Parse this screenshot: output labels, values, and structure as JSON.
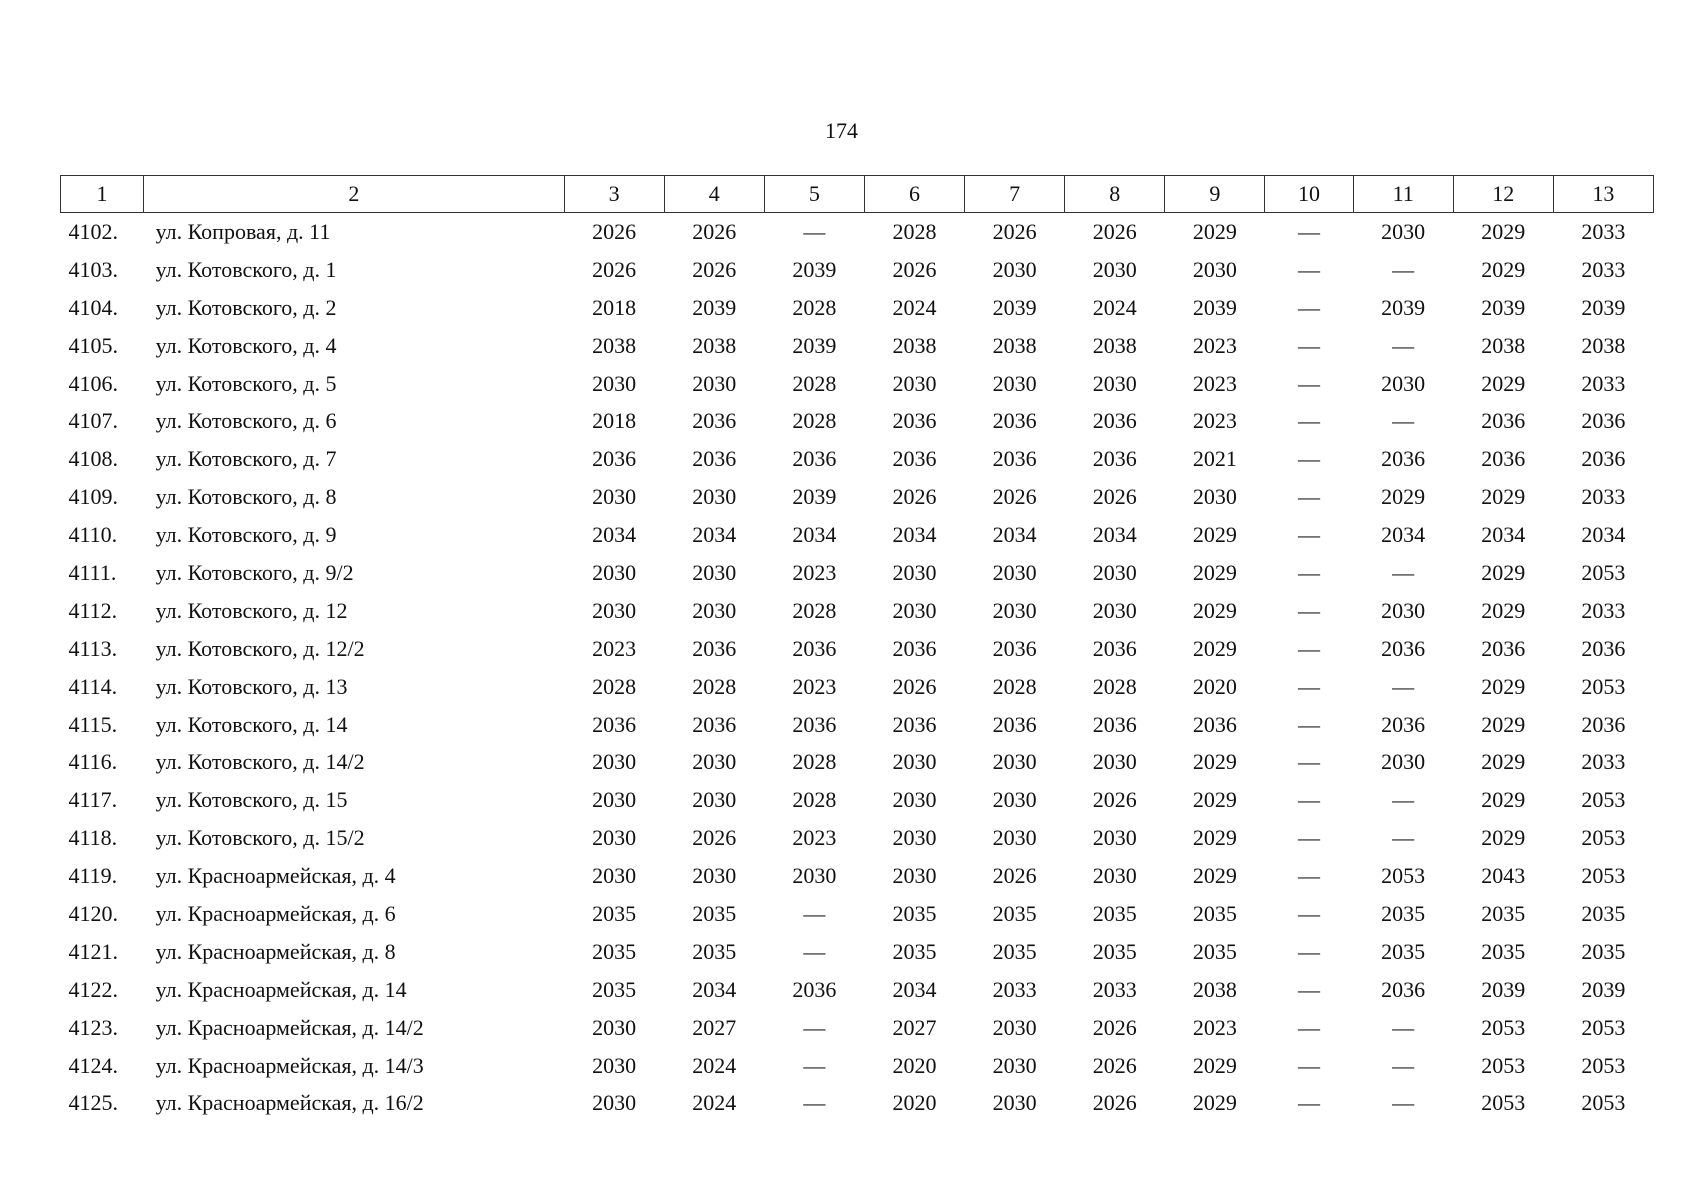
{
  "page_number": "174",
  "table": {
    "headers": [
      "1",
      "2",
      "3",
      "4",
      "5",
      "6",
      "7",
      "8",
      "9",
      "10",
      "11",
      "12",
      "13"
    ],
    "rows": [
      [
        "4102.",
        "ул. Копровая, д. 11",
        "2026",
        "2026",
        "—",
        "2028",
        "2026",
        "2026",
        "2029",
        "—",
        "2030",
        "2029",
        "2033"
      ],
      [
        "4103.",
        "ул. Котовского, д. 1",
        "2026",
        "2026",
        "2039",
        "2026",
        "2030",
        "2030",
        "2030",
        "—",
        "—",
        "2029",
        "2033"
      ],
      [
        "4104.",
        "ул. Котовского, д. 2",
        "2018",
        "2039",
        "2028",
        "2024",
        "2039",
        "2024",
        "2039",
        "—",
        "2039",
        "2039",
        "2039"
      ],
      [
        "4105.",
        "ул. Котовского, д. 4",
        "2038",
        "2038",
        "2039",
        "2038",
        "2038",
        "2038",
        "2023",
        "—",
        "—",
        "2038",
        "2038"
      ],
      [
        "4106.",
        "ул. Котовского, д. 5",
        "2030",
        "2030",
        "2028",
        "2030",
        "2030",
        "2030",
        "2023",
        "—",
        "2030",
        "2029",
        "2033"
      ],
      [
        "4107.",
        "ул. Котовского, д. 6",
        "2018",
        "2036",
        "2028",
        "2036",
        "2036",
        "2036",
        "2023",
        "—",
        "—",
        "2036",
        "2036"
      ],
      [
        "4108.",
        "ул. Котовского, д. 7",
        "2036",
        "2036",
        "2036",
        "2036",
        "2036",
        "2036",
        "2021",
        "—",
        "2036",
        "2036",
        "2036"
      ],
      [
        "4109.",
        "ул. Котовского, д. 8",
        "2030",
        "2030",
        "2039",
        "2026",
        "2026",
        "2026",
        "2030",
        "—",
        "2029",
        "2029",
        "2033"
      ],
      [
        "4110.",
        "ул. Котовского, д. 9",
        "2034",
        "2034",
        "2034",
        "2034",
        "2034",
        "2034",
        "2029",
        "—",
        "2034",
        "2034",
        "2034"
      ],
      [
        "4111.",
        "ул. Котовского, д. 9/2",
        "2030",
        "2030",
        "2023",
        "2030",
        "2030",
        "2030",
        "2029",
        "—",
        "—",
        "2029",
        "2053"
      ],
      [
        "4112.",
        "ул. Котовского, д. 12",
        "2030",
        "2030",
        "2028",
        "2030",
        "2030",
        "2030",
        "2029",
        "—",
        "2030",
        "2029",
        "2033"
      ],
      [
        "4113.",
        "ул. Котовского, д. 12/2",
        "2023",
        "2036",
        "2036",
        "2036",
        "2036",
        "2036",
        "2029",
        "—",
        "2036",
        "2036",
        "2036"
      ],
      [
        "4114.",
        "ул. Котовского, д. 13",
        "2028",
        "2028",
        "2023",
        "2026",
        "2028",
        "2028",
        "2020",
        "—",
        "—",
        "2029",
        "2053"
      ],
      [
        "4115.",
        "ул. Котовского, д. 14",
        "2036",
        "2036",
        "2036",
        "2036",
        "2036",
        "2036",
        "2036",
        "—",
        "2036",
        "2029",
        "2036"
      ],
      [
        "4116.",
        "ул. Котовского, д. 14/2",
        "2030",
        "2030",
        "2028",
        "2030",
        "2030",
        "2030",
        "2029",
        "—",
        "2030",
        "2029",
        "2033"
      ],
      [
        "4117.",
        "ул. Котовского, д. 15",
        "2030",
        "2030",
        "2028",
        "2030",
        "2030",
        "2026",
        "2029",
        "—",
        "—",
        "2029",
        "2053"
      ],
      [
        "4118.",
        "ул. Котовского, д. 15/2",
        "2030",
        "2026",
        "2023",
        "2030",
        "2030",
        "2030",
        "2029",
        "—",
        "—",
        "2029",
        "2053"
      ],
      [
        "4119.",
        "ул. Красноармейская, д. 4",
        "2030",
        "2030",
        "2030",
        "2030",
        "2026",
        "2030",
        "2029",
        "—",
        "2053",
        "2043",
        "2053"
      ],
      [
        "4120.",
        "ул. Красноармейская, д. 6",
        "2035",
        "2035",
        "—",
        "2035",
        "2035",
        "2035",
        "2035",
        "—",
        "2035",
        "2035",
        "2035"
      ],
      [
        "4121.",
        "ул. Красноармейская, д. 8",
        "2035",
        "2035",
        "—",
        "2035",
        "2035",
        "2035",
        "2035",
        "—",
        "2035",
        "2035",
        "2035"
      ],
      [
        "4122.",
        "ул. Красноармейская, д. 14",
        "2035",
        "2034",
        "2036",
        "2034",
        "2033",
        "2033",
        "2038",
        "—",
        "2036",
        "2039",
        "2039"
      ],
      [
        "4123.",
        "ул. Красноармейская, д. 14/2",
        "2030",
        "2027",
        "—",
        "2027",
        "2030",
        "2026",
        "2023",
        "—",
        "—",
        "2053",
        "2053"
      ],
      [
        "4124.",
        "ул. Красноармейская, д. 14/3",
        "2030",
        "2024",
        "—",
        "2020",
        "2030",
        "2026",
        "2029",
        "—",
        "—",
        "2053",
        "2053"
      ],
      [
        "4125.",
        "ул. Красноармейская, д. 16/2",
        "2030",
        "2024",
        "—",
        "2020",
        "2030",
        "2026",
        "2029",
        "—",
        "—",
        "2053",
        "2053"
      ]
    ]
  }
}
